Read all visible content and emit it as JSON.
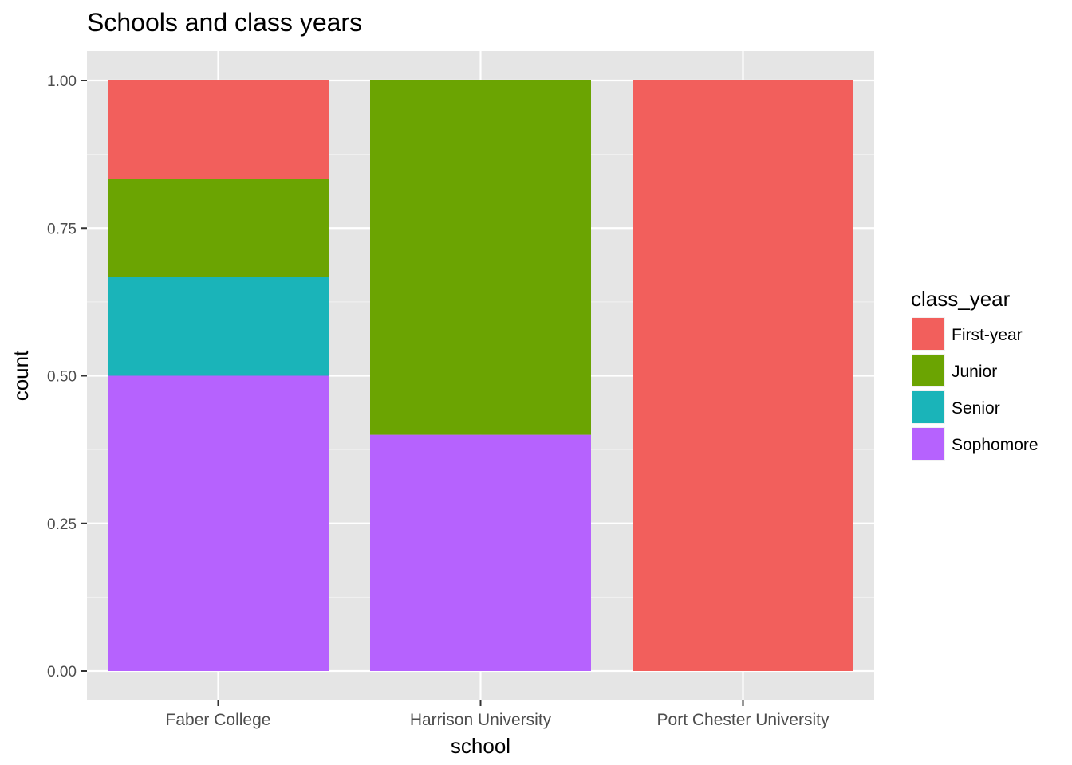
{
  "chart_data": {
    "type": "bar",
    "stacked": true,
    "title": "Schools and class years",
    "xlabel": "school",
    "ylabel": "count",
    "ylim": [
      0,
      1
    ],
    "yticks": [
      "0.00",
      "0.25",
      "0.50",
      "0.75",
      "1.00"
    ],
    "ytick_values": [
      0,
      0.25,
      0.5,
      0.75,
      1.0
    ],
    "grid": true,
    "categories": [
      "Faber College",
      "Harrison University",
      "Port Chester University"
    ],
    "legend": {
      "title": "class_year",
      "position": "right"
    },
    "series": [
      {
        "name": "First-year",
        "color": "#F25F5C",
        "values": [
          0.1667,
          0,
          1.0
        ]
      },
      {
        "name": "Junior",
        "color": "#6BA402",
        "values": [
          0.1667,
          0.6,
          0
        ]
      },
      {
        "name": "Senior",
        "color": "#1AB4B9",
        "values": [
          0.1667,
          0,
          0
        ]
      },
      {
        "name": "Sophomore",
        "color": "#B662FE",
        "values": [
          0.5,
          0.4,
          0
        ]
      }
    ],
    "stack_order_bottom_to_top": [
      "Sophomore",
      "Senior",
      "Junior",
      "First-year"
    ]
  },
  "colors": {
    "panel_bg": "#E5E5E5",
    "grid_major": "#FFFFFF",
    "grid_minor": "#F2F2F2",
    "tick_text": "#4D4D4D"
  }
}
